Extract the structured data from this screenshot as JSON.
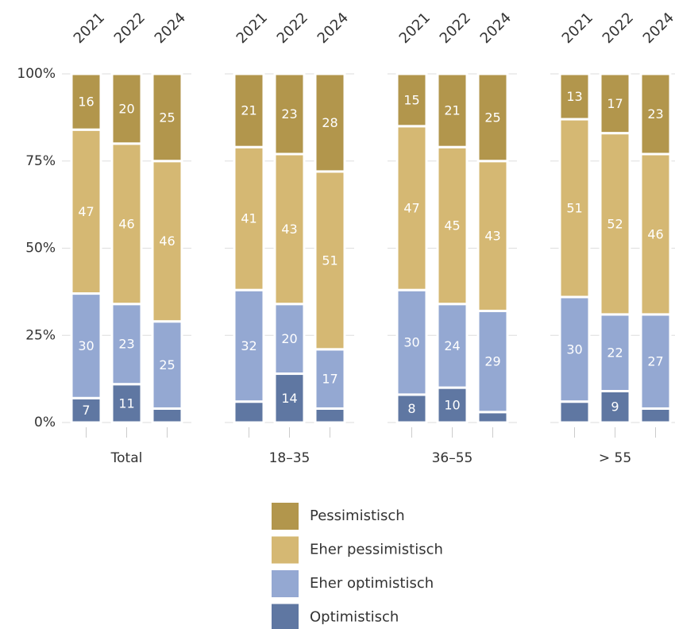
{
  "chart_data": {
    "type": "stacked_bar",
    "groups": [
      {
        "name": "Total",
        "categories": [
          "2021",
          "2022",
          "2024"
        ]
      },
      {
        "name": "18–35",
        "categories": [
          "2021",
          "2022",
          "2024"
        ]
      },
      {
        "name": "36–55",
        "categories": [
          "2021",
          "2022",
          "2024"
        ]
      },
      {
        "name": "> 55",
        "categories": [
          "2021",
          "2022",
          "2024"
        ]
      }
    ],
    "series": [
      {
        "name": "Pessimistisch",
        "color": "#b2964c",
        "values": [
          [
            16,
            20,
            25
          ],
          [
            21,
            23,
            28
          ],
          [
            15,
            21,
            25
          ],
          [
            13,
            17,
            23
          ]
        ]
      },
      {
        "name": "Eher pessimistisch",
        "color": "#d5b873",
        "values": [
          [
            47,
            46,
            46
          ],
          [
            41,
            43,
            51
          ],
          [
            47,
            45,
            43
          ],
          [
            51,
            52,
            46
          ]
        ]
      },
      {
        "name": "Eher optimistisch",
        "color": "#94a8d2",
        "values": [
          [
            30,
            23,
            25
          ],
          [
            32,
            20,
            17
          ],
          [
            30,
            24,
            29
          ],
          [
            30,
            22,
            27
          ]
        ]
      },
      {
        "name": "Optimistisch",
        "color": "#5f77a2",
        "values": [
          [
            7,
            11,
            4
          ],
          [
            6,
            14,
            4
          ],
          [
            8,
            10,
            3
          ],
          [
            6,
            9,
            4
          ]
        ]
      }
    ],
    "ylim": [
      0,
      100
    ],
    "yticks": [
      {
        "value": 0,
        "label": "0%"
      },
      {
        "value": 25,
        "label": "25%"
      },
      {
        "value": 50,
        "label": "50%"
      },
      {
        "value": 75,
        "label": "75%"
      },
      {
        "value": 100,
        "label": "100%"
      }
    ],
    "grid": true
  }
}
